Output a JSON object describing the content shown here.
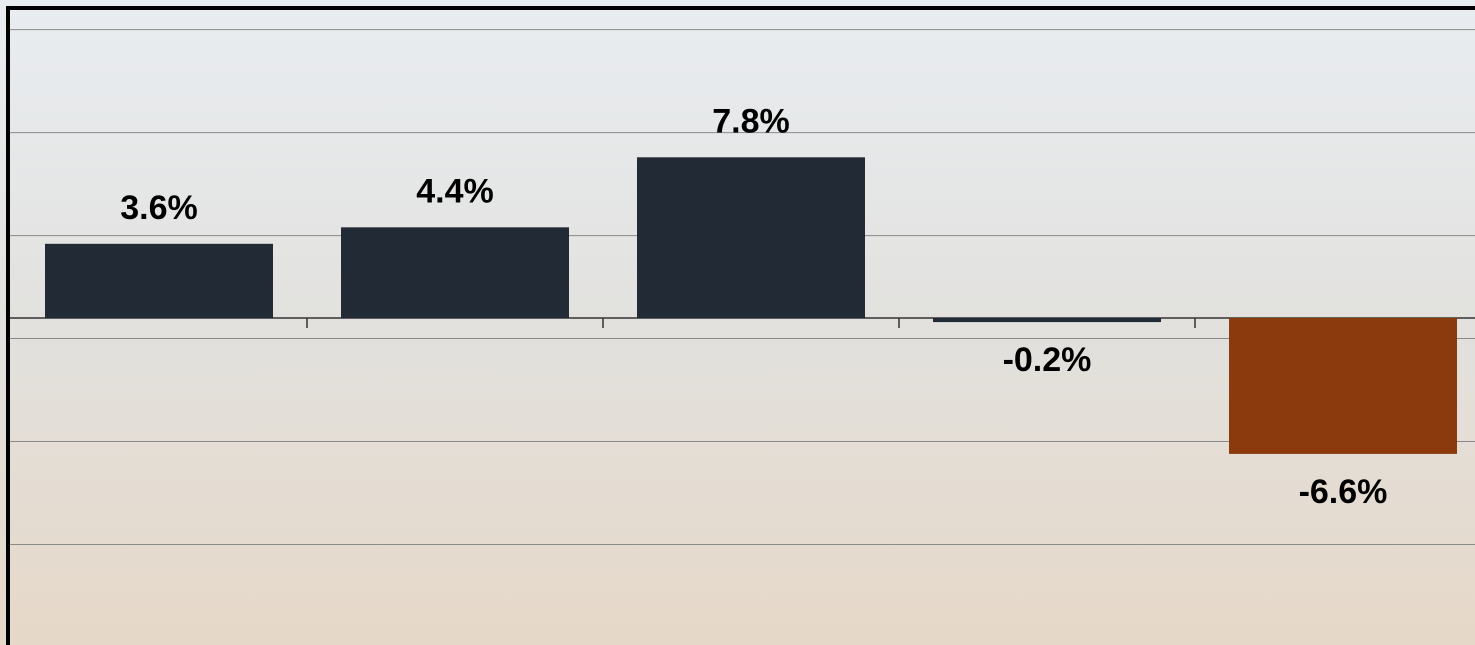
{
  "chart_data": {
    "type": "bar",
    "categories": [
      null,
      null,
      null,
      null,
      null
    ],
    "values": [
      3.6,
      4.4,
      7.8,
      -0.2,
      -6.6
    ],
    "value_labels": [
      "3.6%",
      "4.4%",
      "7.8%",
      "-0.2%",
      "-6.6%"
    ],
    "colors": [
      "#222a36",
      "#222a36",
      "#222a36",
      "#222a36",
      "#8b3a0e"
    ],
    "ylim": [
      -15.8,
      15
    ],
    "yticks": [
      -11,
      -6,
      -1,
      4,
      9,
      14
    ],
    "grid": true
  }
}
